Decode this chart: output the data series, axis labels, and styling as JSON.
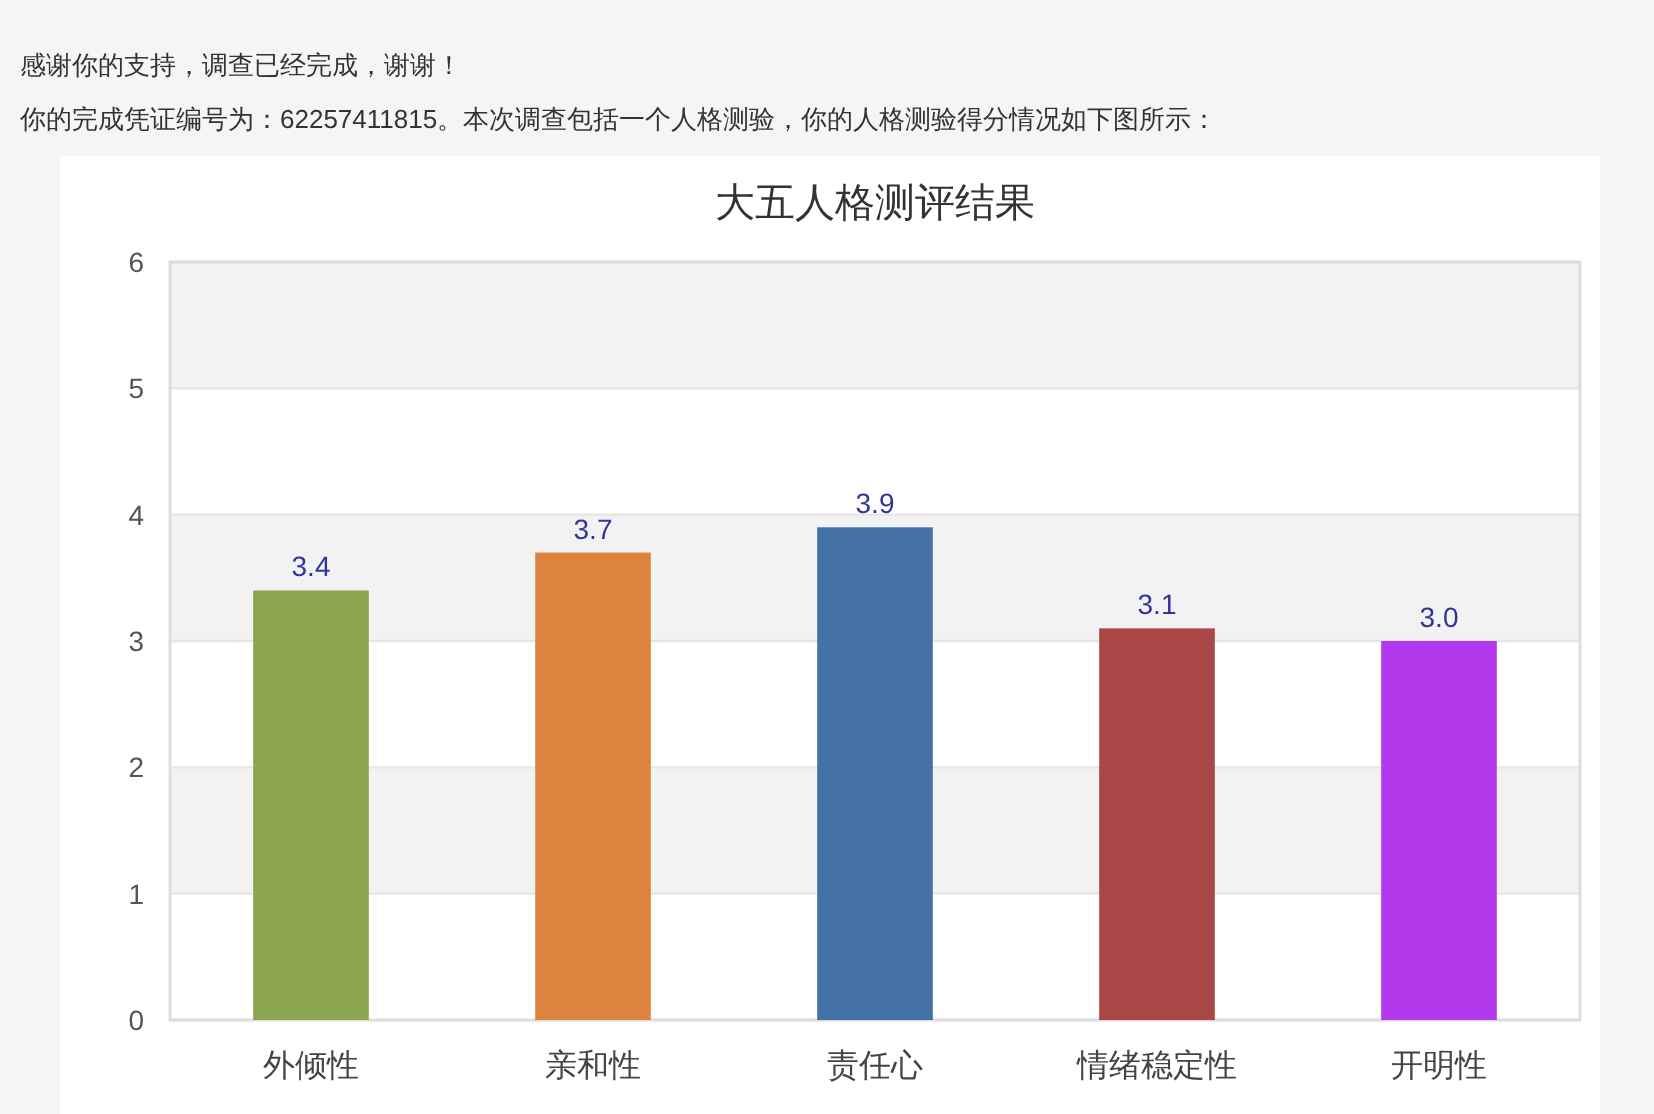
{
  "chart_data": {
    "type": "bar",
    "title": "大五人格测评结果",
    "annotations": [
      "感谢你的支持，调查已经完成，谢谢！",
      "你的完成凭证编号为：62257411815。本次调查包括一个人格测验，你的人格测验得分情况如下图所示："
    ],
    "categories": [
      "外倾性",
      "亲和性",
      "责任心",
      "情绪稳定性",
      "开明性"
    ],
    "values": [
      3.4,
      3.7,
      3.9,
      3.1,
      3.0
    ],
    "value_labels": [
      "3.4",
      "3.7",
      "3.9",
      "3.1",
      "3.0"
    ],
    "colors": [
      "#8aa54e",
      "#dc843f",
      "#4472a8",
      "#a84745",
      "#b23aec"
    ],
    "ylim": [
      0,
      6
    ],
    "yticks": [
      0,
      1,
      2,
      3,
      4,
      5,
      6
    ],
    "grid": "y",
    "bands": [
      {
        "axis": "y",
        "from": 5,
        "to": 6,
        "color": "#f2f2f2"
      },
      {
        "axis": "y",
        "from": 3,
        "to": 4,
        "color": "#f2f2f2"
      },
      {
        "axis": "y",
        "from": 1,
        "to": 2,
        "color": "#f2f2f2"
      }
    ]
  }
}
